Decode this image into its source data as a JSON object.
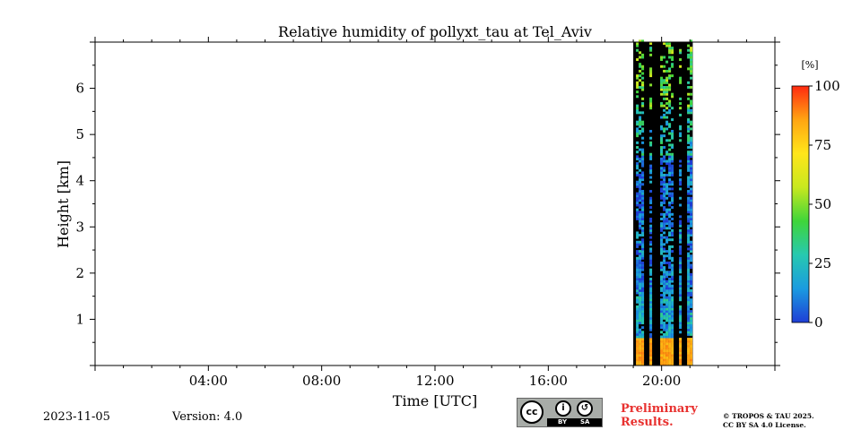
{
  "chart_data": {
    "type": "heatmap",
    "title": "Relative humidity of pollyxt_tau at Tel_Aviv",
    "xlabel": "Time [UTC]",
    "ylabel": "Height [km]",
    "x_ticks": [
      "04:00",
      "08:00",
      "12:00",
      "16:00",
      "20:00"
    ],
    "x_tick_hours": [
      4,
      8,
      12,
      16,
      20
    ],
    "xlim_hours": [
      0,
      24
    ],
    "y_ticks": [
      1,
      2,
      3,
      4,
      5,
      6
    ],
    "ylim_km": [
      0,
      7
    ],
    "colorbar": {
      "unit": "[%]",
      "ticks": [
        0,
        25,
        50,
        75,
        100
      ],
      "range": [
        0,
        100
      ],
      "colormap": [
        "#1f3ed6",
        "#1a9be0",
        "#27c9b0",
        "#3fd53a",
        "#c8e81f",
        "#ffe61a",
        "#ffa512",
        "#ff2a10"
      ]
    },
    "data_window_hours": [
      19.0,
      21.1
    ],
    "surface_layer": {
      "height_km": [
        0,
        0.55
      ],
      "rh_percent": 85
    },
    "profile_rh_percent": [
      {
        "height_km": [
          0.55,
          1.5
        ],
        "rh_percent": 18
      },
      {
        "height_km": [
          1.5,
          3.0
        ],
        "rh_percent": 12
      },
      {
        "height_km": [
          3.0,
          4.5
        ],
        "rh_percent": 8
      },
      {
        "height_km": [
          4.5,
          5.5
        ],
        "rh_percent": 25
      },
      {
        "height_km": [
          5.5,
          7.0
        ],
        "rh_percent": 45
      }
    ],
    "grid": false
  },
  "footer": {
    "date": "2023-11-05",
    "version": "Version: 4.0",
    "preliminary": "Preliminary Results.",
    "copyright_line1": "© TROPOS & TAU 2025.",
    "copyright_line2": "CC BY SA 4.0 License.",
    "license_badge": {
      "cc": "cc",
      "by": "BY",
      "sa": "SA"
    }
  },
  "colors": {
    "missing": "#000000",
    "axis": "#000000",
    "preliminary": "#e8312f"
  }
}
